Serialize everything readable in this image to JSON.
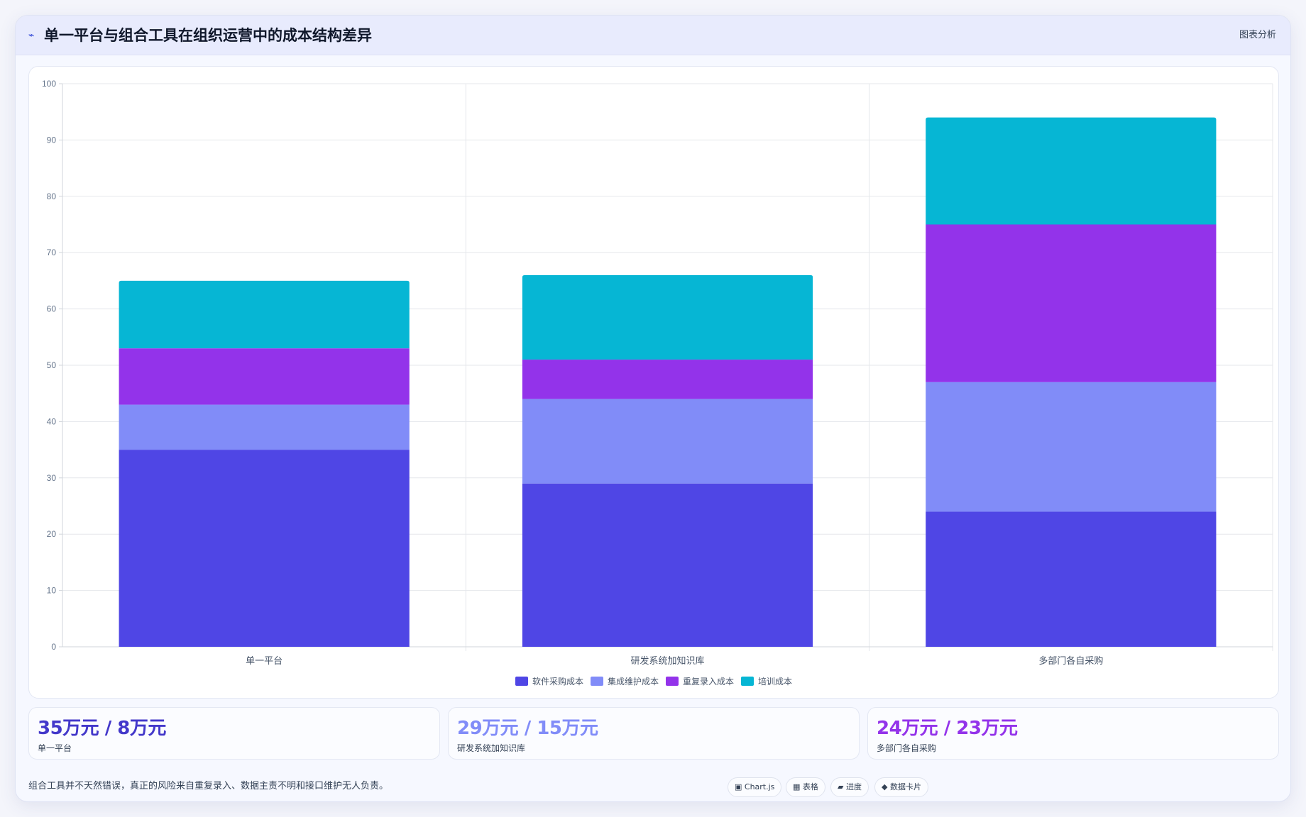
{
  "header": {
    "icon": "⌁",
    "icon_name": "spark-icon",
    "title": "单一平台与组合工具在组织运营中的成本结构差异",
    "right_label": "图表分析"
  },
  "chart_data": {
    "type": "bar",
    "stacked": true,
    "categories": [
      "单一平台",
      "研发系统加知识库",
      "多部门各自采购"
    ],
    "series": [
      {
        "name": "软件采购成本",
        "color": "#4f46e5",
        "values": [
          35,
          29,
          24
        ]
      },
      {
        "name": "集成维护成本",
        "color": "#818cf8",
        "values": [
          8,
          15,
          23
        ]
      },
      {
        "name": "重复录入成本",
        "color": "#9333ea",
        "values": [
          10,
          7,
          28
        ]
      },
      {
        "name": "培训成本",
        "color": "#06b6d4",
        "values": [
          12,
          15,
          19
        ]
      }
    ],
    "ylim": [
      0,
      100
    ],
    "yticks": [
      0,
      10,
      20,
      30,
      40,
      50,
      60,
      70,
      80,
      90,
      100
    ],
    "grid": true,
    "legend": "bottom"
  },
  "stats": [
    {
      "value": "35万元 / 8万元",
      "label": "单一平台",
      "color": "#4338ca"
    },
    {
      "value": "29万元 / 15万元",
      "label": "研发系统加知识库",
      "color": "#818cf8"
    },
    {
      "value": "24万元 / 23万元",
      "label": "多部门各自采购",
      "color": "#9333ea"
    }
  ],
  "footer": {
    "note": "组合工具并不天然错误，真正的风险来自重复录入、数据主责不明和接口维护无人负责。",
    "tags": [
      "▣ Chart.js",
      "▦ 表格",
      "▰ 进度",
      "◆ 数据卡片"
    ]
  }
}
